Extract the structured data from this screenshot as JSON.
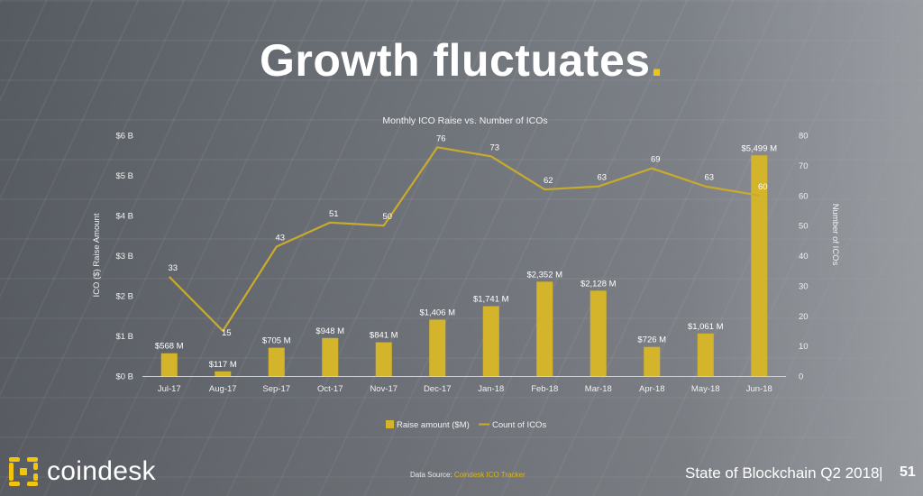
{
  "headline": {
    "text": "Growth fluctuates",
    "dot": "."
  },
  "chart_data": {
    "type": "bar",
    "title": "Monthly ICO Raise vs. Number of ICOs",
    "categories": [
      "Jul-17",
      "Aug-17",
      "Sep-17",
      "Oct-17",
      "Nov-17",
      "Dec-17",
      "Jan-18",
      "Feb-18",
      "Mar-18",
      "Apr-18",
      "May-18",
      "Jun-18"
    ],
    "series": [
      {
        "name": "Raise amount ($M)",
        "type": "bar",
        "axis": "left",
        "values": [
          568,
          117,
          705,
          948,
          841,
          1406,
          1741,
          2352,
          2128,
          726,
          1061,
          5499
        ],
        "labels": [
          "$568 M",
          "$117 M",
          "$705 M",
          "$948 M",
          "$841 M",
          "$1,406 M",
          "$1,741 M",
          "$2,352 M",
          "$2,128 M",
          "$726 M",
          "$1,061 M",
          "$5,499 M"
        ],
        "color": "#d4b42a"
      },
      {
        "name": "Count of ICOs",
        "type": "line",
        "axis": "right",
        "values": [
          33,
          15,
          43,
          51,
          50,
          76,
          73,
          62,
          63,
          69,
          63,
          60
        ],
        "color": "#c8ab2e"
      }
    ],
    "ylabel": "ICO ($) Raise Amount",
    "ylabel_right": "Number of ICOs",
    "ylim": [
      0,
      6000
    ],
    "ylim_right": [
      0,
      80
    ],
    "yticks": [
      "$0 B",
      "$1 B",
      "$2 B",
      "$3 B",
      "$4 B",
      "$5 B",
      "$6 B"
    ],
    "yticks_right": [
      "0",
      "10",
      "20",
      "30",
      "40",
      "50",
      "60",
      "70",
      "80"
    ],
    "grid": false,
    "legend": "bottom"
  },
  "footer": {
    "brand": "coindesk",
    "source_prefix": "Data Source: ",
    "source_link": "Coindesk ICO Tracker",
    "report": "State of Blockchain Q2 2018",
    "separator": "|",
    "page": "51"
  },
  "colors": {
    "accent": "#f1c40f",
    "bar": "#d4b42a",
    "line": "#c8ab2e"
  }
}
